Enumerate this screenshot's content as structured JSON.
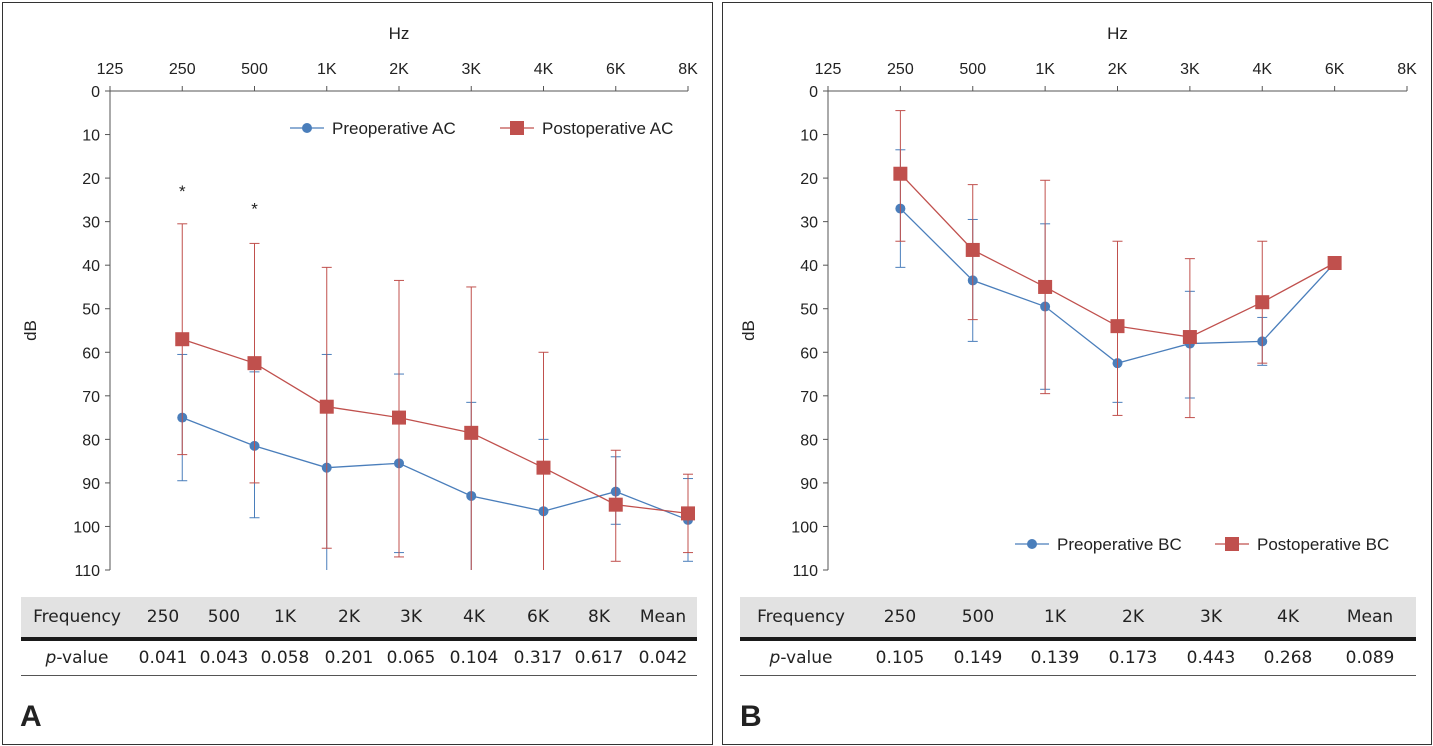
{
  "chart_data": [
    {
      "type": "line",
      "panel_label": "A",
      "title": "",
      "xlabel": "Hz",
      "ylabel": "dB",
      "categories": [
        "125",
        "250",
        "500",
        "1K",
        "2K",
        "3K",
        "4K",
        "6K",
        "8K"
      ],
      "ylim": [
        0,
        110
      ],
      "yticks": [
        "0",
        "10",
        "20",
        "30",
        "40",
        "50",
        "60",
        "70",
        "80",
        "90",
        "100",
        "110"
      ],
      "y_inverted": true,
      "legend_position": "top-right",
      "significance_marks": [
        {
          "category": "250",
          "y": 22.5,
          "text": "*"
        },
        {
          "category": "500",
          "y": 26.5,
          "text": "*"
        }
      ],
      "series": [
        {
          "name": "Preoperative AC",
          "color": "#4a7ebb",
          "marker": "circle",
          "x": [
            "250",
            "500",
            "1K",
            "2K",
            "3K",
            "4K",
            "6K",
            "8K"
          ],
          "values": [
            75.0,
            81.5,
            86.5,
            85.5,
            93.0,
            96.5,
            92.0,
            98.5
          ],
          "error_low": [
            60.5,
            64.5,
            60.5,
            65.0,
            71.5,
            80.0,
            84.0,
            89.0
          ],
          "error_high": [
            89.5,
            98.0,
            110,
            106.0,
            110,
            110,
            99.5,
            108.0
          ]
        },
        {
          "name": "Postoperative AC",
          "color": "#c0504d",
          "marker": "square",
          "x": [
            "250",
            "500",
            "1K",
            "2K",
            "3K",
            "4K",
            "6K",
            "8K"
          ],
          "values": [
            57.0,
            62.5,
            72.5,
            75.0,
            78.5,
            86.5,
            95.0,
            97.0
          ],
          "error_low": [
            30.5,
            35.0,
            40.5,
            43.5,
            45.0,
            60.0,
            82.5,
            88.0
          ],
          "error_high": [
            83.5,
            90.0,
            105.0,
            107.0,
            110,
            110,
            108.0,
            106.0
          ]
        }
      ],
      "table": {
        "header": [
          "Frequency",
          "250",
          "500",
          "1K",
          "2K",
          "3K",
          "4K",
          "6K",
          "8K",
          "Mean"
        ],
        "row_label_italic": "p",
        "row_label_rest": "-value",
        "values": [
          "0.041",
          "0.043",
          "0.058",
          "0.201",
          "0.065",
          "0.104",
          "0.317",
          "0.617",
          "0.042"
        ]
      }
    },
    {
      "type": "line",
      "panel_label": "B",
      "title": "",
      "xlabel": "Hz",
      "ylabel": "dB",
      "categories": [
        "125",
        "250",
        "500",
        "1K",
        "2K",
        "3K",
        "4K",
        "6K",
        "8K"
      ],
      "ylim": [
        0,
        110
      ],
      "yticks": [
        "0",
        "10",
        "20",
        "30",
        "40",
        "50",
        "60",
        "70",
        "80",
        "90",
        "100",
        "110"
      ],
      "y_inverted": true,
      "legend_position": "bottom-right",
      "series": [
        {
          "name": "Preoperative BC",
          "color": "#4a7ebb",
          "marker": "circle",
          "x": [
            "250",
            "500",
            "1K",
            "2K",
            "3K",
            "4K",
            "6K"
          ],
          "values": [
            27.0,
            43.5,
            49.5,
            62.5,
            58.0,
            57.5,
            39.5
          ],
          "error_low": [
            13.5,
            29.5,
            30.5,
            null,
            46.0,
            52.0,
            null
          ],
          "error_high": [
            40.5,
            57.5,
            68.5,
            71.5,
            70.5,
            63.0,
            null
          ]
        },
        {
          "name": "Postoperative BC",
          "color": "#c0504d",
          "marker": "square",
          "x": [
            "250",
            "500",
            "1K",
            "2K",
            "3K",
            "4K",
            "6K"
          ],
          "values": [
            19.0,
            36.5,
            45.0,
            54.0,
            56.5,
            48.5,
            39.5
          ],
          "error_low": [
            4.5,
            21.5,
            20.5,
            34.5,
            38.5,
            34.5,
            null
          ],
          "error_high": [
            34.5,
            52.5,
            69.5,
            74.5,
            75.0,
            62.5,
            null
          ]
        }
      ],
      "table": {
        "header": [
          "Frequency",
          "250",
          "500",
          "1K",
          "2K",
          "3K",
          "4K",
          "Mean"
        ],
        "row_label_italic": "p",
        "row_label_rest": "-value",
        "values": [
          "0.105",
          "0.149",
          "0.139",
          "0.173",
          "0.443",
          "0.268",
          "0.089"
        ]
      }
    }
  ]
}
